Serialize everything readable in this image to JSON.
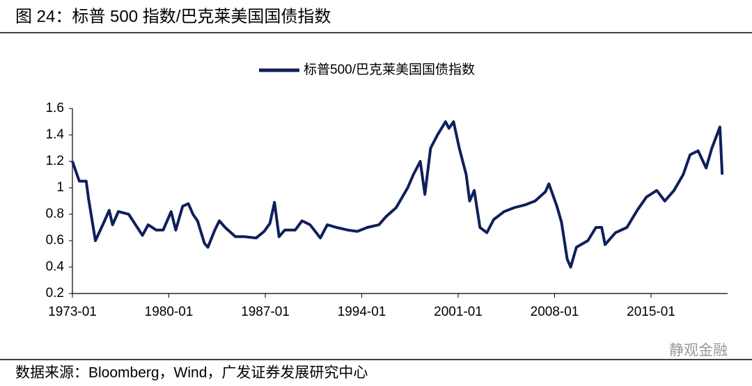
{
  "chart_data": {
    "type": "line",
    "title": "图 24：标普 500 指数/巴克莱美国国债指数",
    "source": "数据来源：Bloomberg，Wind，广发证券发展研究中心",
    "watermark": "静观金融",
    "x": [
      "1973-01",
      "1973-07",
      "1974-01",
      "1974-03",
      "1974-09",
      "1975-04",
      "1975-09",
      "1975-12",
      "1976-05",
      "1977-02",
      "1977-08",
      "1978-02",
      "1978-07",
      "1979-02",
      "1979-08",
      "1980-03",
      "1980-07",
      "1981-01",
      "1981-06",
      "1981-10",
      "1982-02",
      "1982-08",
      "1982-11",
      "1983-05",
      "1983-09",
      "1984-02",
      "1984-11",
      "1985-07",
      "1986-05",
      "1986-12",
      "1987-05",
      "1987-09",
      "1988-01",
      "1988-06",
      "1989-03",
      "1989-09",
      "1990-04",
      "1991-01",
      "1991-07",
      "1992-03",
      "1993-01",
      "1993-09",
      "1994-06",
      "1995-04",
      "1995-10",
      "1996-07",
      "1997-05",
      "1997-10",
      "1998-04",
      "1998-08",
      "1999-01",
      "1999-07",
      "2000-02",
      "2000-05",
      "2000-09",
      "2001-02",
      "2001-08",
      "2001-11",
      "2002-03",
      "2002-08",
      "2003-02",
      "2003-08",
      "2004-05",
      "2005-02",
      "2005-11",
      "2006-08",
      "2007-05",
      "2007-08",
      "2008-03",
      "2008-07",
      "2008-12",
      "2009-03",
      "2009-08",
      "2010-06",
      "2011-01",
      "2011-06",
      "2011-09",
      "2012-06",
      "2013-04",
      "2014-01",
      "2014-09",
      "2015-06",
      "2016-01",
      "2016-09",
      "2017-05",
      "2017-11",
      "2018-06",
      "2019-01",
      "2019-06",
      "2020-01",
      "2020-03"
    ],
    "series": [
      {
        "name": "标普500/巴克莱美国国债指数",
        "color": "#0f1f5c",
        "values": [
          1.2,
          1.05,
          1.05,
          0.92,
          0.6,
          0.73,
          0.83,
          0.72,
          0.82,
          0.8,
          0.72,
          0.64,
          0.72,
          0.68,
          0.68,
          0.82,
          0.68,
          0.86,
          0.88,
          0.8,
          0.75,
          0.58,
          0.55,
          0.68,
          0.75,
          0.7,
          0.63,
          0.63,
          0.62,
          0.67,
          0.73,
          0.89,
          0.63,
          0.68,
          0.68,
          0.75,
          0.72,
          0.62,
          0.72,
          0.7,
          0.68,
          0.67,
          0.7,
          0.72,
          0.78,
          0.85,
          1.0,
          1.1,
          1.2,
          0.95,
          1.3,
          1.4,
          1.5,
          1.45,
          1.5,
          1.3,
          1.1,
          0.9,
          0.98,
          0.7,
          0.66,
          0.76,
          0.82,
          0.85,
          0.87,
          0.9,
          0.97,
          1.03,
          0.86,
          0.74,
          0.46,
          0.4,
          0.55,
          0.6,
          0.7,
          0.7,
          0.57,
          0.66,
          0.7,
          0.83,
          0.93,
          0.98,
          0.9,
          0.98,
          1.1,
          1.25,
          1.28,
          1.15,
          1.3,
          1.46,
          1.1
        ]
      }
    ],
    "xticks": [
      "1973-01",
      "1980-01",
      "1987-01",
      "1994-01",
      "2001-01",
      "2008-01",
      "2015-01"
    ],
    "ylim": [
      0.2,
      1.6
    ],
    "yticks": [
      0.2,
      0.4,
      0.6,
      0.8,
      1,
      1.2,
      1.4,
      1.6
    ],
    "legend": "top"
  }
}
